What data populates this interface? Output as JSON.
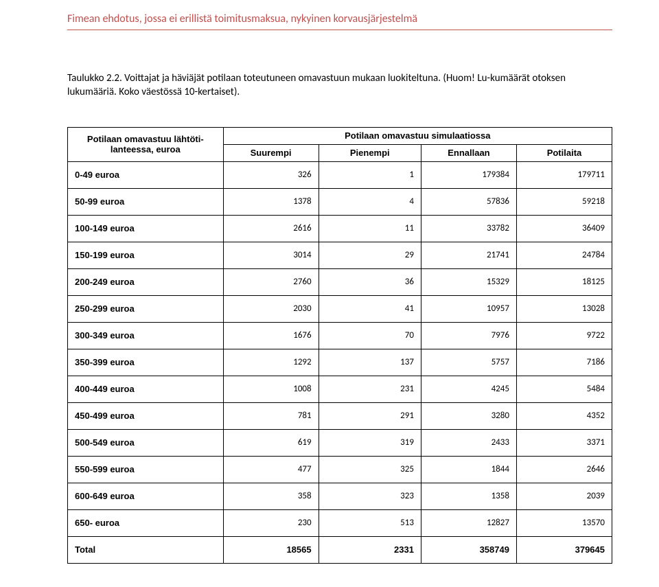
{
  "colors": {
    "accent": "#c0504d",
    "border": "#000000",
    "bg": "#ffffff",
    "text": "#000000"
  },
  "header": {
    "text": "Fimean ehdotus, jossa ei erillistä toimitusmaksua, nykyinen korvausjärjestelmä"
  },
  "caption": {
    "title": "Taulukko 2.2.",
    "body": " Voittajat ja häviäjät potilaan toteutuneen omavastuun mukaan luokiteltuna. (Huom! Lu-kumäärät otoksen lukumääriä. Koko väestössä 10-kertaiset)."
  },
  "table": {
    "head1_col0": "Potilaan omavastuu lähtöti-lanteessa, euroa",
    "head1_span": "Potilaan omavastuu simulaatiossa",
    "head2": [
      "Suurempi",
      "Pienempi",
      "Ennallaan",
      "Potilaita"
    ],
    "rows": [
      {
        "label": "0-49 euroa",
        "v": [
          "326",
          "1",
          "179384",
          "179711"
        ]
      },
      {
        "label": "50-99 euroa",
        "v": [
          "1378",
          "4",
          "57836",
          "59218"
        ]
      },
      {
        "label": "100-149 euroa",
        "v": [
          "2616",
          "11",
          "33782",
          "36409"
        ]
      },
      {
        "label": "150-199 euroa",
        "v": [
          "3014",
          "29",
          "21741",
          "24784"
        ]
      },
      {
        "label": "200-249 euroa",
        "v": [
          "2760",
          "36",
          "15329",
          "18125"
        ]
      },
      {
        "label": "250-299 euroa",
        "v": [
          "2030",
          "41",
          "10957",
          "13028"
        ]
      },
      {
        "label": "300-349 euroa",
        "v": [
          "1676",
          "70",
          "7976",
          "9722"
        ]
      },
      {
        "label": "350-399 euroa",
        "v": [
          "1292",
          "137",
          "5757",
          "7186"
        ]
      },
      {
        "label": "400-449 euroa",
        "v": [
          "1008",
          "231",
          "4245",
          "5484"
        ]
      },
      {
        "label": "450-499 euroa",
        "v": [
          "781",
          "291",
          "3280",
          "4352"
        ]
      },
      {
        "label": "500-549 euroa",
        "v": [
          "619",
          "319",
          "2433",
          "3371"
        ]
      },
      {
        "label": "550-599 euroa",
        "v": [
          "477",
          "325",
          "1844",
          "2646"
        ]
      },
      {
        "label": "600-649 euroa",
        "v": [
          "358",
          "323",
          "1358",
          "2039"
        ]
      },
      {
        "label": "650- euroa",
        "v": [
          "230",
          "513",
          "12827",
          "13570"
        ]
      }
    ],
    "total": {
      "label": "Total",
      "v": [
        "18565",
        "2331",
        "358749",
        "379645"
      ]
    }
  }
}
